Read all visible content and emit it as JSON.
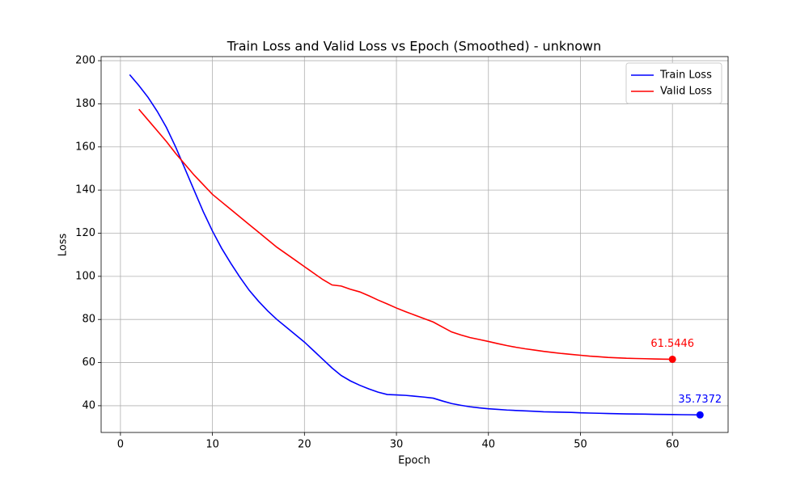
{
  "chart_data": {
    "type": "line",
    "title": "Train Loss and Valid Loss vs Epoch (Smoothed) - unknown",
    "xlabel": "Epoch",
    "ylabel": "Loss",
    "xlim": [
      -2.1,
      66.05
    ],
    "ylim": [
      27.6,
      201.9
    ],
    "xticks": [
      0,
      10,
      20,
      30,
      40,
      50,
      60
    ],
    "yticks": [
      40,
      60,
      80,
      100,
      120,
      140,
      160,
      180,
      200
    ],
    "grid": true,
    "legend": "upper right",
    "series": [
      {
        "name": "Train Loss",
        "color": "#0000ff",
        "x": [
          1,
          2,
          3,
          4,
          5,
          6,
          7,
          8,
          9,
          10,
          11,
          12,
          13,
          14,
          15,
          16,
          17,
          18,
          19,
          20,
          21,
          22,
          23,
          24,
          25,
          26,
          27,
          28,
          29,
          30,
          31,
          32,
          33,
          34,
          35,
          36,
          37,
          38,
          39,
          40,
          41,
          42,
          43,
          44,
          45,
          46,
          47,
          48,
          49,
          50,
          51,
          52,
          53,
          54,
          55,
          56,
          57,
          58,
          59,
          60,
          61,
          62,
          63
        ],
        "values": [
          193.5,
          188.5,
          183,
          176.5,
          169,
          160,
          150,
          140,
          130,
          121,
          113,
          106,
          99.5,
          93.5,
          88.5,
          84,
          80,
          76.5,
          73,
          69.5,
          65.5,
          61.5,
          57.5,
          54,
          51.5,
          49.5,
          47.8,
          46.3,
          45.2,
          45,
          44.8,
          44.4,
          44,
          43.5,
          42.2,
          41,
          40.2,
          39.5,
          39,
          38.6,
          38.3,
          38,
          37.8,
          37.6,
          37.4,
          37.2,
          37.1,
          37,
          36.9,
          36.7,
          36.6,
          36.5,
          36.4,
          36.3,
          36.2,
          36.15,
          36.1,
          36,
          35.95,
          35.9,
          35.85,
          35.8,
          35.7372
        ]
      },
      {
        "name": "Valid Loss",
        "color": "#ff0000",
        "x": [
          2,
          3,
          4,
          5,
          6,
          7,
          8,
          9,
          10,
          11,
          12,
          13,
          14,
          15,
          16,
          17,
          18,
          19,
          20,
          21,
          22,
          23,
          24,
          25,
          26,
          27,
          28,
          29,
          30,
          31,
          32,
          33,
          34,
          35,
          36,
          37,
          38,
          39,
          40,
          41,
          42,
          43,
          44,
          45,
          46,
          47,
          48,
          49,
          50,
          51,
          52,
          53,
          54,
          55,
          56,
          57,
          58,
          59,
          60
        ],
        "values": [
          177.5,
          172.5,
          167.5,
          162.5,
          157,
          152,
          147,
          142.5,
          138,
          134.5,
          131,
          127.5,
          124,
          120.5,
          117,
          113.5,
          110.5,
          107.5,
          104.5,
          101.5,
          98.5,
          96,
          95.5,
          94,
          92.8,
          91,
          89,
          87.2,
          85.3,
          83.6,
          82,
          80.4,
          78.8,
          76.5,
          74.2,
          72.8,
          71.6,
          70.7,
          69.8,
          68.8,
          67.9,
          67.1,
          66.4,
          65.8,
          65.2,
          64.7,
          64.2,
          63.8,
          63.4,
          63,
          62.7,
          62.4,
          62.2,
          62,
          61.9,
          61.8,
          61.7,
          61.6,
          61.5446
        ]
      }
    ]
  }
}
